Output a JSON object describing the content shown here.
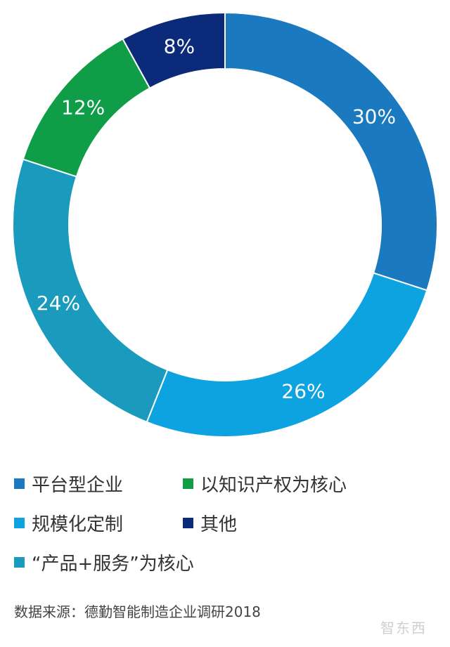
{
  "chart_data": {
    "type": "pie",
    "donut": true,
    "slices": [
      {
        "name": "平台型企业",
        "value": 30,
        "label": "30%",
        "color": "#1a79bf"
      },
      {
        "name": "规模化定制",
        "value": 26,
        "label": "26%",
        "color": "#0da2e0"
      },
      {
        "name": "“产品+服务”为核心",
        "value": 24,
        "label": "24%",
        "color": "#1a9bbd"
      },
      {
        "name": "以知识产权为核心",
        "value": 12,
        "label": "12%",
        "color": "#0f9d48"
      },
      {
        "name": "其他",
        "value": 8,
        "label": "8%",
        "color": "#0b2a7a"
      }
    ],
    "start_angle_deg": 0,
    "direction": "clockwise",
    "legend_position": "bottom"
  },
  "legend": {
    "items": [
      {
        "label": "平台型企业",
        "color": "#1a79bf"
      },
      {
        "label": "以知识产权为核心",
        "color": "#0f9d48"
      },
      {
        "label": "规模化定制",
        "color": "#0da2e0"
      },
      {
        "label": "其他",
        "color": "#0b2a7a"
      },
      {
        "label": "“产品+服务”为核心",
        "color": "#1a9bbd"
      }
    ]
  },
  "source": "数据来源：德勤智能制造企业调研2018",
  "watermark": "智东西"
}
